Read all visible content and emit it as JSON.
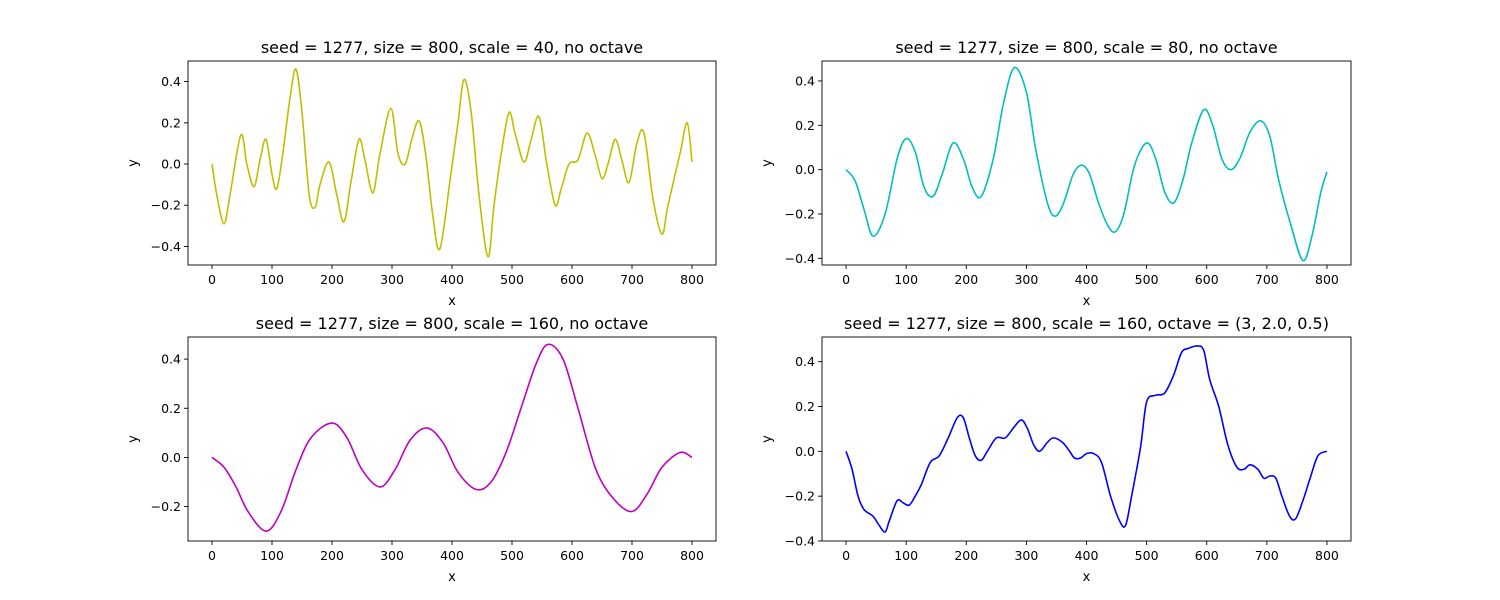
{
  "chart_data": [
    {
      "type": "line",
      "title": "seed = 1277, size = 800, scale = 40, no octave",
      "xlabel": "x",
      "ylabel": "y",
      "xlim": [
        -40,
        840
      ],
      "ylim": [
        -0.49,
        0.5
      ],
      "xticks": [
        0,
        100,
        200,
        300,
        400,
        500,
        600,
        700,
        800
      ],
      "yticks": [
        -0.4,
        -0.2,
        0.0,
        0.2,
        0.4
      ],
      "xtick_labels": [
        "0",
        "100",
        "200",
        "300",
        "400",
        "500",
        "600",
        "700",
        "800"
      ],
      "ytick_labels": [
        "−0.4",
        "−0.2",
        "0.0",
        "0.2",
        "0.4"
      ],
      "grid": false,
      "color": "#bfbf00",
      "series": [
        {
          "x": [
            0,
            8,
            20,
            30,
            48,
            58,
            70,
            80,
            90,
            100,
            108,
            118,
            130,
            140,
            150,
            162,
            172,
            180,
            195,
            208,
            220,
            232,
            245,
            255,
            268,
            280,
            298,
            310,
            322,
            333,
            345,
            356,
            368,
            380,
            398,
            410,
            420,
            432,
            445,
            460,
            470,
            482,
            495,
            505,
            520,
            532,
            545,
            558,
            572,
            582,
            595,
            610,
            625,
            638,
            650,
            660,
            672,
            683,
            695,
            708,
            720,
            735,
            750,
            760,
            780,
            792,
            800
          ],
          "y": [
            0.0,
            -0.15,
            -0.29,
            -0.15,
            0.14,
            0.0,
            -0.11,
            0.02,
            0.12,
            -0.05,
            -0.12,
            0.05,
            0.32,
            0.46,
            0.25,
            -0.15,
            -0.21,
            -0.1,
            0.01,
            -0.15,
            -0.28,
            -0.08,
            0.12,
            0.02,
            -0.14,
            0.05,
            0.27,
            0.05,
            0.0,
            0.12,
            0.21,
            0.05,
            -0.25,
            -0.41,
            -0.05,
            0.2,
            0.41,
            0.25,
            -0.15,
            -0.45,
            -0.2,
            0.05,
            0.25,
            0.15,
            0.01,
            0.12,
            0.23,
            0.0,
            -0.2,
            -0.12,
            0.0,
            0.02,
            0.15,
            0.05,
            -0.07,
            0.0,
            0.12,
            0.02,
            -0.09,
            0.1,
            0.15,
            -0.17,
            -0.34,
            -0.2,
            0.05,
            0.2,
            0.01
          ]
        }
      ]
    },
    {
      "type": "line",
      "title": "seed = 1277, size = 800, scale = 80, no octave",
      "xlabel": "x",
      "ylabel": "y",
      "xlim": [
        -40,
        840
      ],
      "ylim": [
        -0.43,
        0.49
      ],
      "xticks": [
        0,
        100,
        200,
        300,
        400,
        500,
        600,
        700,
        800
      ],
      "yticks": [
        -0.4,
        -0.2,
        0.0,
        0.2,
        0.4
      ],
      "xtick_labels": [
        "0",
        "100",
        "200",
        "300",
        "400",
        "500",
        "600",
        "700",
        "800"
      ],
      "ytick_labels": [
        "−0.4",
        "−0.2",
        "0.0",
        "0.2",
        "0.4"
      ],
      "grid": false,
      "color": "#00bfbf",
      "series": [
        {
          "x": [
            0,
            15,
            30,
            45,
            65,
            85,
            100,
            115,
            130,
            145,
            160,
            178,
            195,
            210,
            225,
            245,
            262,
            280,
            300,
            315,
            335,
            348,
            362,
            378,
            392,
            405,
            420,
            435,
            448,
            462,
            480,
            500,
            515,
            530,
            545,
            560,
            575,
            595,
            610,
            625,
            640,
            655,
            672,
            690,
            705,
            720,
            740,
            760,
            775,
            790,
            800
          ],
          "y": [
            0.0,
            -0.05,
            -0.18,
            -0.3,
            -0.2,
            0.05,
            0.14,
            0.08,
            -0.08,
            -0.12,
            -0.02,
            0.12,
            0.05,
            -0.08,
            -0.12,
            0.05,
            0.3,
            0.46,
            0.35,
            0.1,
            -0.15,
            -0.21,
            -0.15,
            -0.02,
            0.02,
            -0.02,
            -0.15,
            -0.25,
            -0.28,
            -0.2,
            0.02,
            0.12,
            0.05,
            -0.1,
            -0.15,
            -0.05,
            0.12,
            0.27,
            0.2,
            0.05,
            0.0,
            0.05,
            0.17,
            0.22,
            0.15,
            -0.05,
            -0.25,
            -0.41,
            -0.3,
            -0.1,
            -0.01
          ]
        }
      ]
    },
    {
      "type": "line",
      "title": "seed = 1277, size = 800, scale = 160, no octave",
      "xlabel": "x",
      "ylabel": "y",
      "xlim": [
        -40,
        840
      ],
      "ylim": [
        -0.34,
        0.49
      ],
      "xticks": [
        0,
        100,
        200,
        300,
        400,
        500,
        600,
        700,
        800
      ],
      "yticks": [
        -0.2,
        0.0,
        0.2,
        0.4
      ],
      "xtick_labels": [
        "0",
        "100",
        "200",
        "300",
        "400",
        "500",
        "600",
        "700",
        "800"
      ],
      "ytick_labels": [
        "−0.2",
        "0.0",
        "0.2",
        "0.4"
      ],
      "grid": false,
      "color": "#bf00bf",
      "series": [
        {
          "x": [
            0,
            20,
            40,
            60,
            90,
            115,
            140,
            165,
            200,
            225,
            250,
            280,
            305,
            330,
            358,
            385,
            410,
            440,
            465,
            490,
            515,
            540,
            560,
            585,
            610,
            640,
            670,
            700,
            725,
            750,
            780,
            800
          ],
          "y": [
            0.0,
            -0.04,
            -0.12,
            -0.22,
            -0.3,
            -0.22,
            -0.05,
            0.08,
            0.14,
            0.08,
            -0.05,
            -0.12,
            -0.05,
            0.07,
            0.12,
            0.06,
            -0.06,
            -0.13,
            -0.1,
            0.02,
            0.2,
            0.38,
            0.46,
            0.4,
            0.2,
            -0.05,
            -0.17,
            -0.22,
            -0.15,
            -0.04,
            0.02,
            0.0
          ]
        }
      ]
    },
    {
      "type": "line",
      "title": "seed = 1277, size = 800, scale = 160, octave = (3, 2.0, 0.5)",
      "xlabel": "x",
      "ylabel": "y",
      "xlim": [
        -40,
        840
      ],
      "ylim": [
        -0.4,
        0.51
      ],
      "xticks": [
        0,
        100,
        200,
        300,
        400,
        500,
        600,
        700,
        800
      ],
      "yticks": [
        -0.4,
        -0.2,
        0.0,
        0.2,
        0.4
      ],
      "xtick_labels": [
        "0",
        "100",
        "200",
        "300",
        "400",
        "500",
        "600",
        "700",
        "800"
      ],
      "ytick_labels": [
        "−0.4",
        "−0.2",
        "0.0",
        "0.2",
        "0.4"
      ],
      "grid": false,
      "color": "#0000ff",
      "series": [
        {
          "x": [
            0,
            10,
            20,
            30,
            45,
            55,
            65,
            72,
            85,
            95,
            105,
            115,
            125,
            140,
            155,
            170,
            185,
            195,
            205,
            215,
            225,
            235,
            250,
            265,
            280,
            292,
            302,
            312,
            322,
            335,
            345,
            360,
            372,
            380,
            390,
            400,
            412,
            425,
            440,
            455,
            465,
            475,
            490,
            500,
            515,
            530,
            545,
            558,
            570,
            585,
            595,
            605,
            620,
            635,
            650,
            662,
            672,
            685,
            695,
            705,
            715,
            725,
            738,
            748,
            760,
            772,
            785,
            800
          ],
          "y": [
            0.0,
            -0.08,
            -0.2,
            -0.26,
            -0.29,
            -0.33,
            -0.36,
            -0.31,
            -0.22,
            -0.23,
            -0.24,
            -0.2,
            -0.15,
            -0.05,
            -0.02,
            0.06,
            0.15,
            0.15,
            0.06,
            -0.02,
            -0.04,
            0.0,
            0.06,
            0.06,
            0.11,
            0.14,
            0.1,
            0.03,
            0.0,
            0.04,
            0.06,
            0.04,
            0.0,
            -0.03,
            -0.03,
            -0.01,
            -0.01,
            -0.05,
            -0.2,
            -0.31,
            -0.33,
            -0.2,
            0.02,
            0.22,
            0.25,
            0.26,
            0.34,
            0.44,
            0.46,
            0.47,
            0.45,
            0.32,
            0.2,
            0.03,
            -0.07,
            -0.08,
            -0.06,
            -0.08,
            -0.12,
            -0.11,
            -0.12,
            -0.2,
            -0.29,
            -0.3,
            -0.22,
            -0.12,
            -0.02,
            0.0
          ]
        }
      ]
    }
  ]
}
